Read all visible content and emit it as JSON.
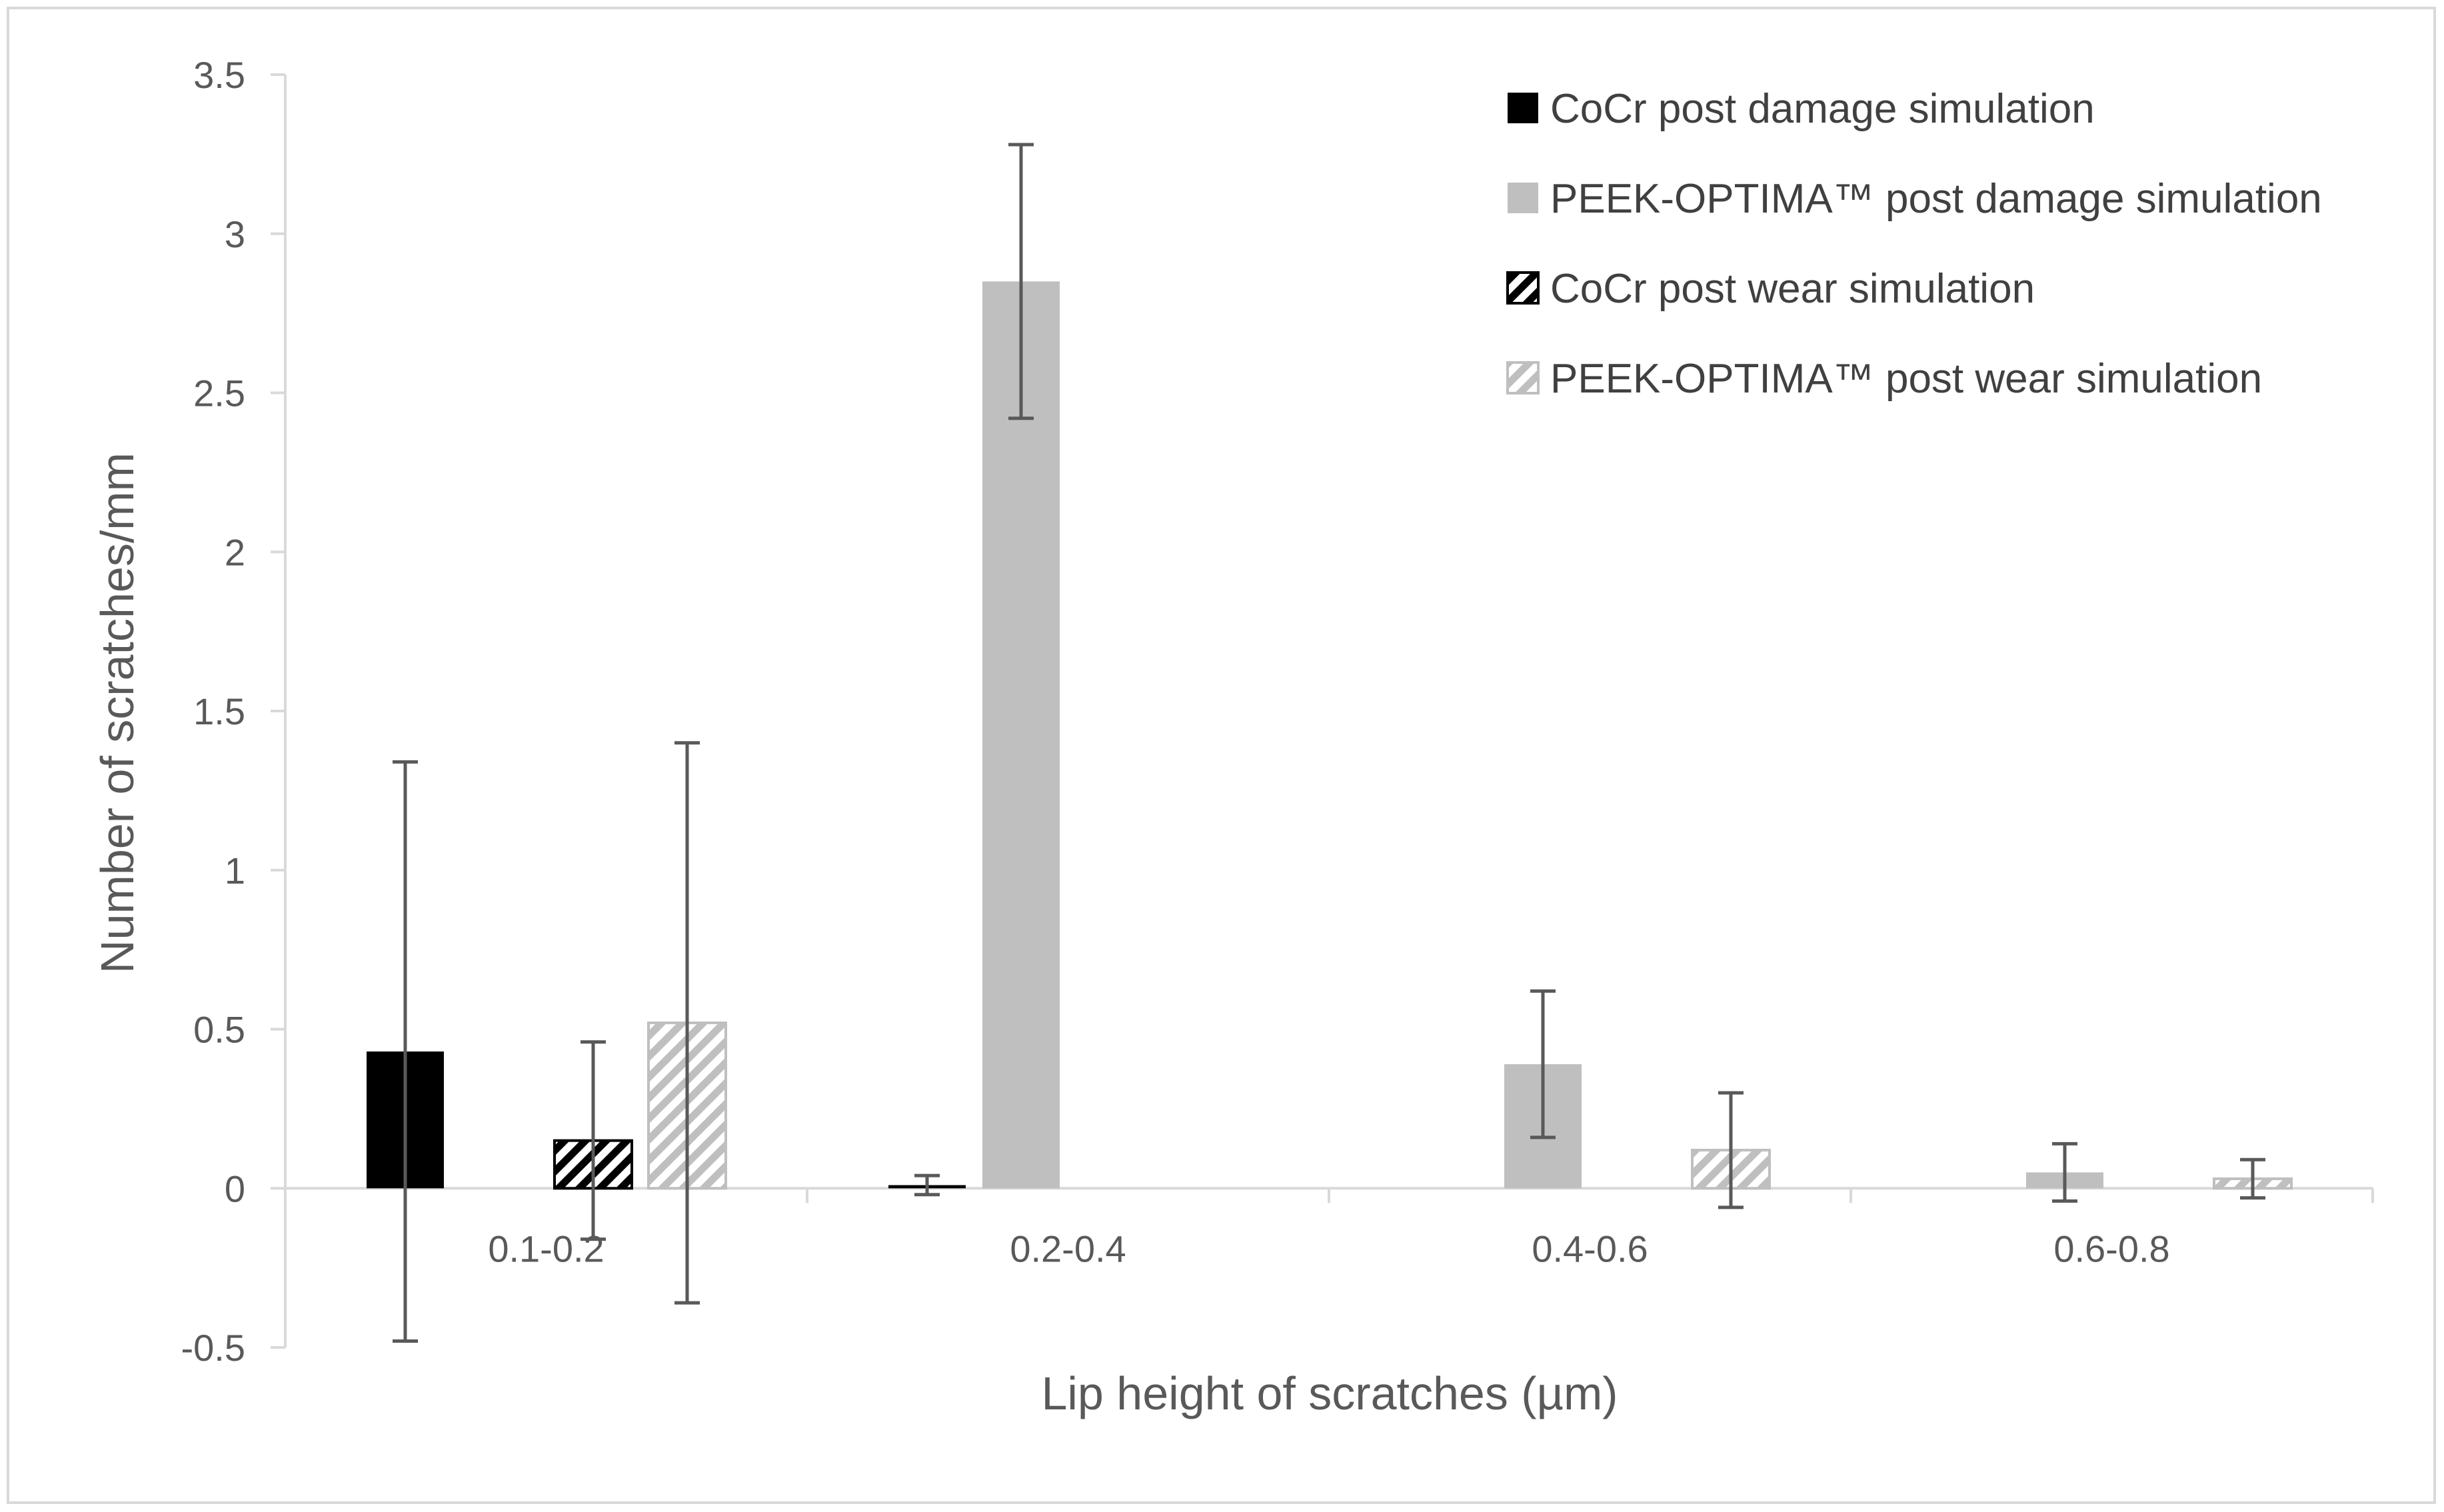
{
  "chart_data": {
    "type": "bar",
    "title": "",
    "xlabel": "Lip height of scratches (µm)",
    "ylabel": "Number of scratches/mm",
    "ylim": [
      -0.5,
      3.5
    ],
    "yticks": [
      3.5,
      3,
      2.5,
      2,
      1.5,
      1,
      0.5,
      0,
      -0.5
    ],
    "ytick_labels": [
      "3.5",
      "3",
      "2.5",
      "2",
      "1.5",
      "1",
      "0.5",
      "0",
      "-0.5"
    ],
    "categories": [
      "0.1-0.2",
      "0.2-0.4",
      "0.4-0.6",
      "0.6-0.8"
    ],
    "grid": false,
    "legend_position": "top-right",
    "series": [
      {
        "name": "CoCr post damage simulation",
        "fill": "solid",
        "color": "#000000",
        "values": [
          0.43,
          0.01,
          0,
          0
        ],
        "error": [
          0.91,
          0.03,
          0,
          0
        ]
      },
      {
        "name": "PEEK-OPTIMA™ post damage simulation",
        "fill": "solid",
        "color": "#bfbfbf",
        "values": [
          0,
          2.85,
          0.39,
          0.05
        ],
        "error": [
          0,
          0.43,
          0.23,
          0.09
        ]
      },
      {
        "name": "CoCr post wear simulation",
        "fill": "hatched",
        "color": "#000000",
        "values": [
          0.15,
          0,
          0,
          0
        ],
        "error": [
          0.31,
          0,
          0,
          0
        ]
      },
      {
        "name": "PEEK-OPTIMA™ post wear simulation",
        "fill": "hatched",
        "color": "#bfbfbf",
        "values": [
          0.52,
          0,
          0.12,
          0.03
        ],
        "error": [
          0.88,
          0,
          0.18,
          0.06
        ]
      }
    ]
  }
}
